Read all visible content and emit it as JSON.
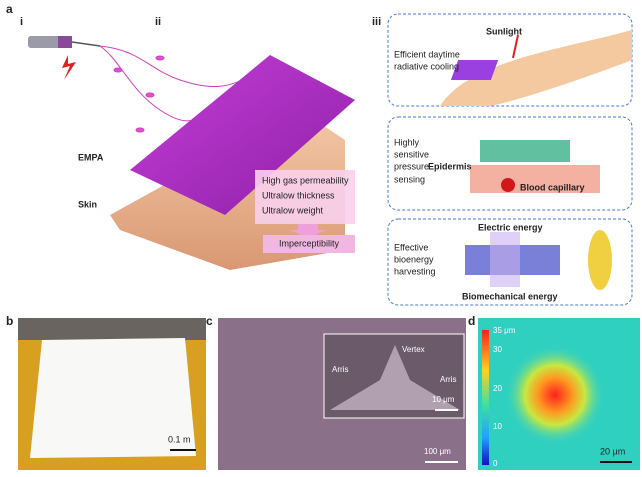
{
  "panel_a": {
    "label": "a",
    "sub_labels": [
      "i",
      "ii",
      "iii"
    ],
    "empa": "EMPA",
    "skin": "Skin",
    "bullets": [
      "High gas permeability",
      "Ultralow thickness",
      "Ultralow weight"
    ],
    "result": "Imperceptibility",
    "cooling": {
      "sunlight": "Sunlight",
      "lines": [
        "Efficient daytime",
        "radiative cooling"
      ]
    },
    "sensing": {
      "lines": [
        "Highly",
        "sensitive",
        "pressure",
        "sensing"
      ],
      "epidermis": "Epidermis",
      "capillary": "Blood capillary"
    },
    "harvesting": {
      "lines": [
        "Effective",
        "bioenergy",
        "harvesting"
      ],
      "electric": "Electric energy",
      "mechanical": "Biomechanical energy"
    }
  },
  "panel_b": {
    "label": "b",
    "scale": "0.1 m"
  },
  "panel_c": {
    "label": "c",
    "arris_left": "Arris",
    "vertex": "Vertex",
    "arris_right": "Arris",
    "inset_scale": "10 μm",
    "scale": "100 μm"
  },
  "panel_d": {
    "label": "d",
    "colorbar": [
      "35 μm",
      "30",
      "20",
      "10",
      "0"
    ],
    "scale": "20 μm"
  }
}
